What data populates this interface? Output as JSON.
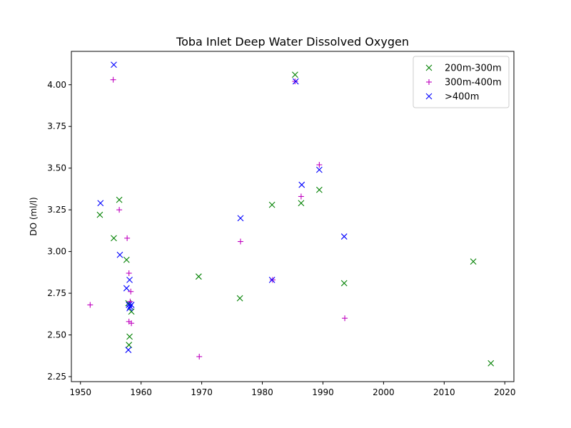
{
  "chart_data": {
    "type": "scatter",
    "title": "Toba Inlet Deep Water Dissolved Oxygen",
    "xlabel": "",
    "ylabel": "DO (ml/l)",
    "xlim": [
      1948.5,
      2021.5
    ],
    "ylim": [
      2.22,
      4.2
    ],
    "x_ticks": [
      1950,
      1960,
      1970,
      1980,
      1990,
      2000,
      2010,
      2020
    ],
    "y_ticks": [
      2.25,
      2.5,
      2.75,
      3.0,
      3.25,
      3.5,
      3.75,
      4.0
    ],
    "x_tick_labels": [
      "1950",
      "1960",
      "1970",
      "1980",
      "1990",
      "2000",
      "2010",
      "2020"
    ],
    "y_tick_labels": [
      "2.25",
      "2.50",
      "2.75",
      "3.00",
      "3.25",
      "3.50",
      "3.75",
      "4.00"
    ],
    "grid": false,
    "legend_position": "top-right",
    "series": [
      {
        "name": "200m-300m",
        "marker": "x",
        "color": "#008000",
        "points": [
          [
            1953.2,
            3.22
          ],
          [
            1955.5,
            3.08
          ],
          [
            1956.4,
            3.31
          ],
          [
            1957.6,
            2.95
          ],
          [
            1957.9,
            2.69
          ],
          [
            1958.1,
            2.49
          ],
          [
            1958.0,
            2.44
          ],
          [
            1958.4,
            2.64
          ],
          [
            1969.5,
            2.85
          ],
          [
            1976.3,
            2.72
          ],
          [
            1981.6,
            3.28
          ],
          [
            1985.4,
            4.06
          ],
          [
            1986.4,
            3.29
          ],
          [
            1989.4,
            3.37
          ],
          [
            1993.5,
            2.81
          ],
          [
            2014.8,
            2.94
          ],
          [
            2017.7,
            2.33
          ]
        ]
      },
      {
        "name": "300m-400m",
        "marker": "+",
        "color": "#bf00bf",
        "points": [
          [
            1951.6,
            2.68
          ],
          [
            1955.4,
            4.03
          ],
          [
            1956.4,
            3.25
          ],
          [
            1957.7,
            3.08
          ],
          [
            1958.0,
            2.87
          ],
          [
            1958.3,
            2.76
          ],
          [
            1958.2,
            2.7
          ],
          [
            1958.0,
            2.58
          ],
          [
            1958.4,
            2.57
          ],
          [
            1969.6,
            2.37
          ],
          [
            1976.4,
            3.06
          ],
          [
            1981.7,
            2.83
          ],
          [
            1985.4,
            4.02
          ],
          [
            1986.4,
            3.33
          ],
          [
            1989.4,
            3.52
          ],
          [
            1993.6,
            2.6
          ]
        ]
      },
      {
        "name": ">400m",
        "marker": "x",
        "color": "#0000ff",
        "points": [
          [
            1953.3,
            3.29
          ],
          [
            1955.5,
            4.12
          ],
          [
            1956.5,
            2.98
          ],
          [
            1957.6,
            2.78
          ],
          [
            1958.1,
            2.83
          ],
          [
            1958.0,
            2.68
          ],
          [
            1958.2,
            2.67
          ],
          [
            1958.4,
            2.68
          ],
          [
            1958.1,
            2.66
          ],
          [
            1957.9,
            2.41
          ],
          [
            1976.4,
            3.2
          ],
          [
            1981.6,
            2.83
          ],
          [
            1985.5,
            4.02
          ],
          [
            1986.5,
            3.4
          ],
          [
            1989.4,
            3.49
          ],
          [
            1993.5,
            3.09
          ]
        ]
      }
    ]
  }
}
